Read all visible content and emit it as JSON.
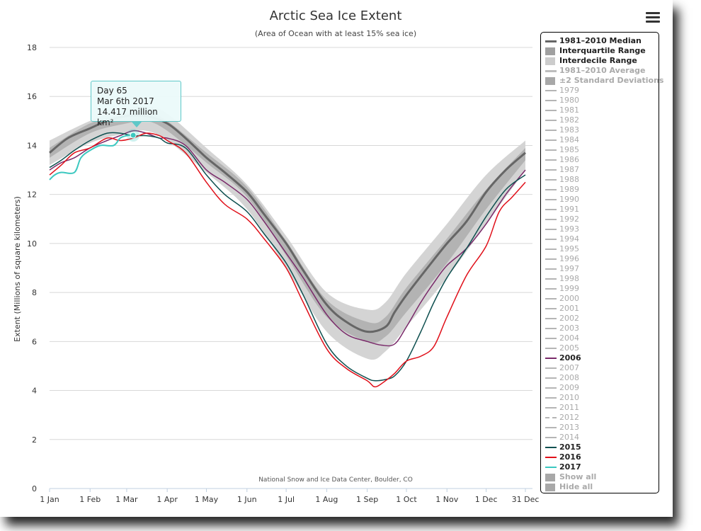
{
  "chart_data": {
    "type": "line",
    "title": "Arctic Sea Ice Extent",
    "subtitle": "(Area of Ocean with at least 15% sea ice)",
    "ylabel": "Extent (Millions of square kilometers)",
    "xlabel": "",
    "ylim": [
      0,
      18
    ],
    "y_ticks": [
      0,
      2,
      4,
      6,
      8,
      10,
      12,
      14,
      16,
      18
    ],
    "x_ticks": [
      {
        "label": "1 Jan",
        "day": 1
      },
      {
        "label": "1 Feb",
        "day": 32
      },
      {
        "label": "1 Mar",
        "day": 60
      },
      {
        "label": "1 Apr",
        "day": 91
      },
      {
        "label": "1 May",
        "day": 121
      },
      {
        "label": "1 Jun",
        "day": 152
      },
      {
        "label": "1 Jul",
        "day": 182
      },
      {
        "label": "1 Aug",
        "day": 213
      },
      {
        "label": "1 Sep",
        "day": 244
      },
      {
        "label": "1 Oct",
        "day": 274
      },
      {
        "label": "1 Nov",
        "day": 305
      },
      {
        "label": "1 Dec",
        "day": 335
      },
      {
        "label": "31 Dec",
        "day": 365
      }
    ],
    "grid": true,
    "legend_position": "right",
    "credit": "National Snow and Ice Data Center, Boulder, CO",
    "bands": [
      {
        "name": "Interdecile Range",
        "color": "#d4d4d4",
        "x": [
          1,
          32,
          60,
          75,
          91,
          121,
          152,
          182,
          213,
          244,
          258,
          274,
          305,
          335,
          365
        ],
        "low": [
          13.2,
          14.1,
          14.5,
          14.6,
          14.2,
          12.9,
          11.4,
          9.0,
          6.4,
          5.3,
          5.6,
          6.6,
          8.6,
          10.8,
          13.0
        ],
        "high": [
          14.2,
          15.0,
          15.5,
          15.6,
          15.3,
          13.9,
          12.4,
          10.3,
          8.0,
          7.3,
          7.6,
          8.8,
          10.8,
          12.8,
          14.2
        ]
      },
      {
        "name": "Interquartile Range",
        "color": "#b3b3b3",
        "x": [
          1,
          32,
          60,
          75,
          91,
          121,
          152,
          182,
          213,
          244,
          258,
          274,
          305,
          335,
          365
        ],
        "low": [
          13.5,
          14.5,
          14.9,
          15.0,
          14.6,
          13.3,
          11.9,
          9.5,
          7.0,
          6.0,
          6.2,
          7.2,
          9.2,
          11.4,
          13.4
        ],
        "high": [
          13.9,
          14.9,
          15.3,
          15.4,
          15.0,
          13.7,
          12.3,
          10.1,
          7.7,
          6.8,
          7.0,
          8.2,
          10.2,
          12.2,
          13.9
        ]
      }
    ],
    "series": [
      {
        "name": "1981-2010 Median",
        "color": "#666666",
        "width": 3,
        "x": [
          1,
          15,
          32,
          45,
          60,
          75,
          91,
          105,
          121,
          135,
          152,
          165,
          182,
          195,
          213,
          228,
          244,
          258,
          265,
          274,
          290,
          305,
          320,
          335,
          350,
          365
        ],
        "values": [
          13.7,
          14.3,
          14.7,
          15.0,
          15.2,
          15.2,
          14.9,
          14.3,
          13.5,
          12.9,
          12.1,
          11.2,
          10.0,
          8.9,
          7.5,
          6.8,
          6.4,
          6.6,
          7.2,
          7.9,
          9.0,
          10.0,
          10.9,
          12.1,
          13.0,
          13.7
        ]
      },
      {
        "name": "2006",
        "color": "#7a2a6a",
        "width": 1.5,
        "x": [
          1,
          10,
          20,
          32,
          45,
          55,
          65,
          75,
          85,
          91,
          105,
          121,
          135,
          152,
          165,
          182,
          195,
          213,
          228,
          244,
          255,
          265,
          274,
          285,
          295,
          305,
          320,
          335,
          350,
          365
        ],
        "values": [
          13.0,
          13.3,
          13.5,
          13.9,
          14.2,
          14.4,
          14.6,
          14.5,
          14.3,
          14.3,
          14.0,
          13.0,
          12.5,
          11.8,
          10.9,
          9.6,
          8.6,
          7.1,
          6.3,
          6.0,
          5.85,
          5.9,
          6.6,
          7.6,
          8.4,
          9.1,
          9.8,
          10.8,
          12.0,
          13.0
        ]
      },
      {
        "name": "2015",
        "color": "#0f5050",
        "width": 1.5,
        "x": [
          1,
          10,
          20,
          32,
          45,
          55,
          65,
          75,
          85,
          91,
          105,
          121,
          135,
          152,
          165,
          182,
          195,
          213,
          228,
          244,
          250,
          258,
          265,
          274,
          285,
          295,
          305,
          320,
          335,
          350,
          365
        ],
        "values": [
          13.1,
          13.4,
          13.8,
          14.2,
          14.5,
          14.5,
          14.4,
          14.4,
          14.3,
          14.1,
          13.9,
          12.8,
          12.0,
          11.3,
          10.4,
          9.2,
          7.9,
          5.9,
          5.0,
          4.5,
          4.4,
          4.45,
          4.6,
          5.2,
          6.4,
          7.6,
          8.6,
          9.8,
          11.1,
          12.2,
          12.8
        ]
      },
      {
        "name": "2016",
        "color": "#e0101a",
        "width": 1.5,
        "x": [
          1,
          10,
          20,
          32,
          45,
          55,
          65,
          75,
          85,
          91,
          105,
          121,
          135,
          152,
          165,
          182,
          195,
          213,
          228,
          244,
          250,
          258,
          265,
          274,
          285,
          295,
          305,
          320,
          335,
          345,
          355,
          365
        ],
        "values": [
          12.8,
          13.2,
          13.7,
          13.9,
          14.3,
          14.2,
          14.3,
          14.5,
          14.4,
          14.2,
          13.7,
          12.5,
          11.6,
          11.0,
          10.2,
          9.0,
          7.6,
          5.7,
          4.9,
          4.4,
          4.15,
          4.4,
          4.7,
          5.2,
          5.4,
          5.8,
          7.0,
          8.7,
          9.9,
          11.3,
          11.9,
          12.5
        ]
      },
      {
        "name": "2017",
        "color": "#3cc8c0",
        "width": 2,
        "x": [
          1,
          5,
          10,
          20,
          25,
          32,
          40,
          50,
          55,
          60,
          65
        ],
        "values": [
          12.6,
          12.8,
          12.9,
          12.9,
          13.5,
          13.8,
          14.0,
          14.0,
          14.3,
          14.4,
          14.417
        ]
      }
    ],
    "tooltip": {
      "line1": "Day 65",
      "line2": "Mar 6th 2017",
      "line3": "14.417 million km²",
      "day": 65,
      "value": 14.417
    }
  },
  "legend": {
    "items": [
      {
        "label": "1981–2010 Median",
        "style": "bold",
        "sym": "thickline",
        "color": "#666666"
      },
      {
        "label": "Interquartile Range",
        "style": "bold",
        "sym": "box",
        "color": "#a0a0a0"
      },
      {
        "label": "Interdecile Range",
        "style": "bold",
        "sym": "box",
        "color": "#cccccc"
      },
      {
        "label": "1981–2010 Average",
        "style": "dimbold",
        "sym": "thickline",
        "color": "#bdbdbd"
      },
      {
        "label": "±2 Standard Deviations",
        "style": "dimbold",
        "sym": "box",
        "color": "#a8a8a8"
      },
      {
        "label": "1979",
        "style": "dim",
        "sym": "line",
        "color": "#b5b5b5"
      },
      {
        "label": "1980",
        "style": "dim",
        "sym": "line",
        "color": "#b5b5b5"
      },
      {
        "label": "1981",
        "style": "dim",
        "sym": "line",
        "color": "#b5b5b5"
      },
      {
        "label": "1982",
        "style": "dim",
        "sym": "line",
        "color": "#b5b5b5"
      },
      {
        "label": "1983",
        "style": "dim",
        "sym": "line",
        "color": "#b5b5b5"
      },
      {
        "label": "1984",
        "style": "dim",
        "sym": "line",
        "color": "#b5b5b5"
      },
      {
        "label": "1985",
        "style": "dim",
        "sym": "line",
        "color": "#b5b5b5"
      },
      {
        "label": "1986",
        "style": "dim",
        "sym": "line",
        "color": "#b5b5b5"
      },
      {
        "label": "1987",
        "style": "dim",
        "sym": "line",
        "color": "#b5b5b5"
      },
      {
        "label": "1988",
        "style": "dim",
        "sym": "line",
        "color": "#b5b5b5"
      },
      {
        "label": "1989",
        "style": "dim",
        "sym": "line",
        "color": "#b5b5b5"
      },
      {
        "label": "1990",
        "style": "dim",
        "sym": "line",
        "color": "#b5b5b5"
      },
      {
        "label": "1991",
        "style": "dim",
        "sym": "line",
        "color": "#b5b5b5"
      },
      {
        "label": "1992",
        "style": "dim",
        "sym": "line",
        "color": "#b5b5b5"
      },
      {
        "label": "1993",
        "style": "dim",
        "sym": "line",
        "color": "#b5b5b5"
      },
      {
        "label": "1994",
        "style": "dim",
        "sym": "line",
        "color": "#b5b5b5"
      },
      {
        "label": "1995",
        "style": "dim",
        "sym": "line",
        "color": "#b5b5b5"
      },
      {
        "label": "1996",
        "style": "dim",
        "sym": "line",
        "color": "#b5b5b5"
      },
      {
        "label": "1997",
        "style": "dim",
        "sym": "line",
        "color": "#b5b5b5"
      },
      {
        "label": "1998",
        "style": "dim",
        "sym": "line",
        "color": "#b5b5b5"
      },
      {
        "label": "1999",
        "style": "dim",
        "sym": "line",
        "color": "#b5b5b5"
      },
      {
        "label": "2000",
        "style": "dim",
        "sym": "line",
        "color": "#b5b5b5"
      },
      {
        "label": "2001",
        "style": "dim",
        "sym": "line",
        "color": "#b5b5b5"
      },
      {
        "label": "2002",
        "style": "dim",
        "sym": "line",
        "color": "#b5b5b5"
      },
      {
        "label": "2003",
        "style": "dim",
        "sym": "line",
        "color": "#b5b5b5"
      },
      {
        "label": "2004",
        "style": "dim",
        "sym": "line",
        "color": "#b5b5b5"
      },
      {
        "label": "2005",
        "style": "dim",
        "sym": "line",
        "color": "#b5b5b5"
      },
      {
        "label": "2006",
        "style": "bold",
        "sym": "line",
        "color": "#7a2a6a"
      },
      {
        "label": "2007",
        "style": "dim",
        "sym": "line",
        "color": "#b5b5b5"
      },
      {
        "label": "2008",
        "style": "dim",
        "sym": "line",
        "color": "#b5b5b5"
      },
      {
        "label": "2009",
        "style": "dim",
        "sym": "line",
        "color": "#b5b5b5"
      },
      {
        "label": "2010",
        "style": "dim",
        "sym": "line",
        "color": "#b5b5b5"
      },
      {
        "label": "2011",
        "style": "dim",
        "sym": "line",
        "color": "#b5b5b5"
      },
      {
        "label": "2012",
        "style": "dim",
        "sym": "dash",
        "color": "#b5b5b5"
      },
      {
        "label": "2013",
        "style": "dim",
        "sym": "line",
        "color": "#b5b5b5"
      },
      {
        "label": "2014",
        "style": "dim",
        "sym": "line",
        "color": "#b5b5b5"
      },
      {
        "label": "2015",
        "style": "bold",
        "sym": "line",
        "color": "#0f5050"
      },
      {
        "label": "2016",
        "style": "bold",
        "sym": "line",
        "color": "#e0101a"
      },
      {
        "label": "2017",
        "style": "bold",
        "sym": "line",
        "color": "#3cc8c0"
      },
      {
        "label": "Show all",
        "style": "dimbold",
        "sym": "box",
        "color": "#a8a8a8"
      },
      {
        "label": "Hide all",
        "style": "dimbold",
        "sym": "box",
        "color": "#a8a8a8"
      }
    ]
  }
}
